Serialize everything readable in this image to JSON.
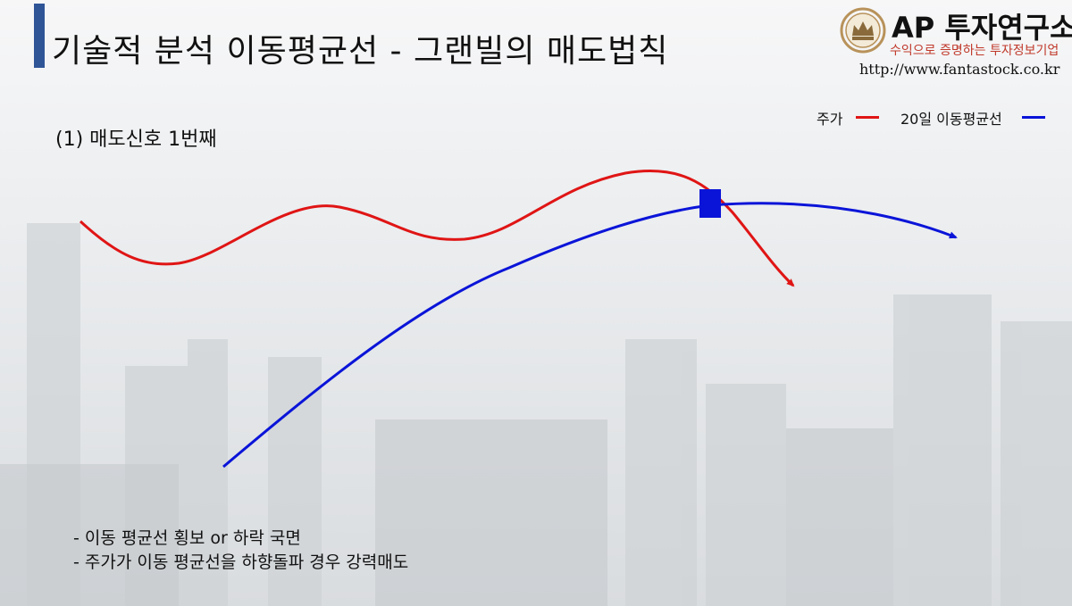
{
  "header": {
    "title": "기술적 분석 이동평균선 - 그랜빌의 매도법칙"
  },
  "logo": {
    "name": "AP 투자연구소",
    "slogan": "수익으로 증명하는 투자정보기업",
    "url": "http://www.fantastock.co.kr"
  },
  "subtitle": "(1) 매도신호 1번째",
  "legend": {
    "price_label": "주가",
    "ma_label": "20일 이동평균선"
  },
  "colors": {
    "accent": "#2f5597",
    "price_line": "#e01515",
    "ma_line": "#0a14d8",
    "signal_marker": "#0a14d8"
  },
  "notes": [
    "- 이동 평균선 횡보 or 하락 국면",
    "- 주가가 이동 평균선을 하향돌파 경우 강력매도"
  ]
}
